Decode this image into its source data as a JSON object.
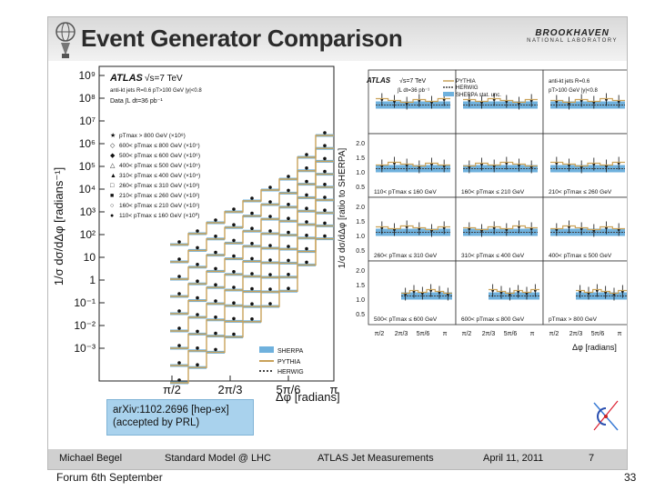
{
  "slide": {
    "title": "Event Generator Comparison",
    "lab_line1": "BROOKHAVEN",
    "lab_line2": "NATIONAL LABORATORY",
    "reference_line1": "arXiv:1102.2696 [hep-ex]",
    "reference_line2": "(accepted by PRL)",
    "footer": {
      "author": "Michael Begel",
      "event": "Standard Model @ LHC",
      "topic": "ATLAS Jet Measurements",
      "date": "April 11, 2011",
      "page": "7"
    }
  },
  "page_footer": {
    "left": "Forum 6th September",
    "right": "33"
  },
  "left_plot": {
    "ylabel": "1/σ dσ/dΔφ [radians⁻¹]",
    "xlabel": "Δφ [radians]",
    "yticks": [
      "10⁹",
      "10⁸",
      "10⁷",
      "10⁶",
      "10⁵",
      "10⁴",
      "10³",
      "10²",
      "10",
      "1",
      "10⁻¹",
      "10⁻²",
      "10⁻³"
    ],
    "xticks": [
      "π/2",
      "2π/3",
      "5π/6",
      "π"
    ],
    "atlas": "ATLAS",
    "energy": "√s=7 TeV",
    "jets": "anti-kt jets R=0.6  pT>100 GeV  |y|<0.8",
    "data": "Data ∫L dt=36 pb⁻¹",
    "bins": [
      "pTmax > 800 GeV (×10⁸)",
      "600< pTmax ≤ 800 GeV (×10⁷)",
      "500< pTmax ≤ 600 GeV (×10⁶)",
      "400< pTmax ≤ 500 GeV (×10⁵)",
      "310< pTmax ≤ 400 GeV (×10⁴)",
      "260< pTmax ≤ 310 GeV (×10³)",
      "210< pTmax ≤ 260 GeV (×10²)",
      "160< pTmax ≤ 210 GeV (×10¹)",
      "110< pTmax ≤ 160 GeV (×10⁰)"
    ],
    "legend": [
      "SHERPA",
      "PYTHIA",
      "HERWIG"
    ]
  },
  "right_plot": {
    "ylabel": "1/σ dσ/dΔφ [ratio to SHERPA]",
    "xlabel": "Δφ [radians]",
    "yticks": [
      "2.0",
      "1.5",
      "1.0",
      "0.5"
    ],
    "xticks": [
      "π/2",
      "2π/3",
      "5π/6",
      "π"
    ],
    "atlas": "ATLAS",
    "energy": "√s=7 TeV",
    "lumi": "∫L dt=36 pb⁻¹",
    "jets": "anti-kt jets R=0.6",
    "cuts": "pT>100 GeV |y|<0.8",
    "legend": [
      "PYTHIA",
      "HERWIG",
      "SHERPA stat. unc."
    ],
    "panels": [
      "",
      "",
      "",
      "110< pTmax ≤ 160 GeV",
      "160< pTmax ≤ 210 GeV",
      "210< pTmax ≤ 260 GeV",
      "260< pTmax ≤ 310 GeV",
      "310< pTmax ≤ 400 GeV",
      "400< pTmax ≤ 500 GeV",
      "500< pTmax ≤ 600 GeV",
      "600< pTmax ≤ 800 GeV",
      "pTmax > 800 GeV"
    ]
  },
  "colors": {
    "sherpa": "#6fb1dd",
    "pythia": "#c9a25a",
    "herwig": "#444444",
    "refbox": "#a9d2ed"
  }
}
